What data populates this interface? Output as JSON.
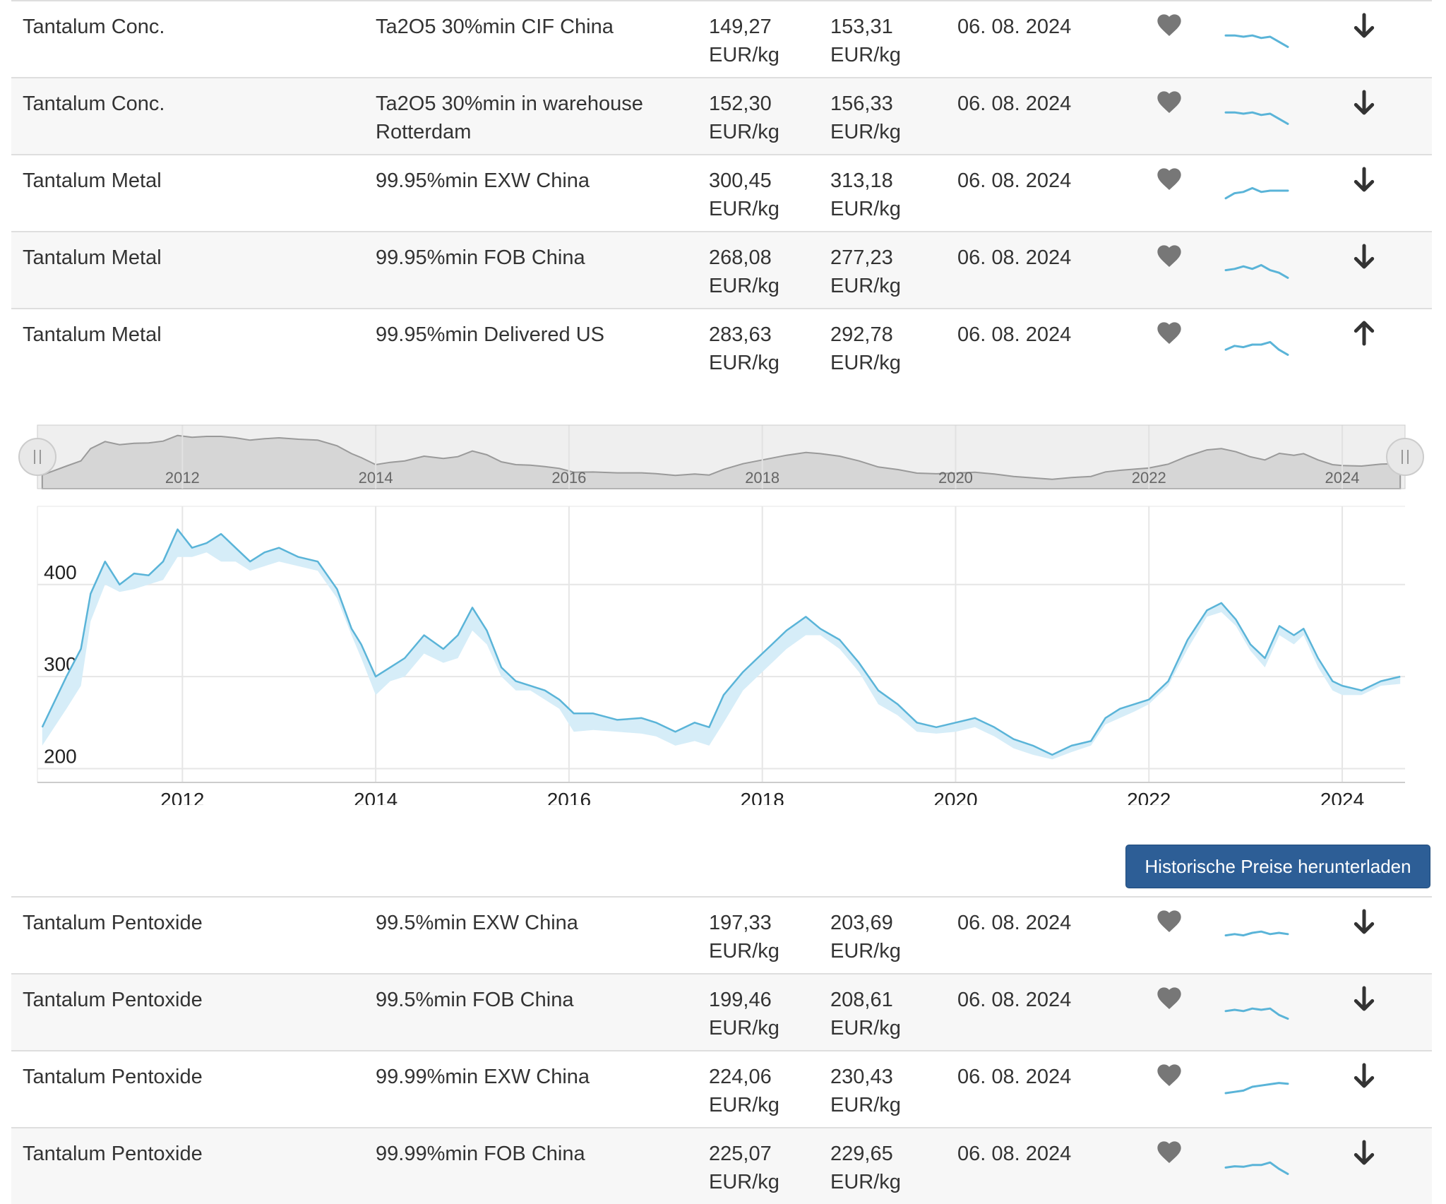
{
  "table_top": {
    "rows": [
      {
        "name": "Tantalum Conc.",
        "spec": "Ta2O5 30%min CIF China",
        "price_low": "149,27",
        "price_high": "153,31",
        "unit": "EUR/kg",
        "date": "06. 08. 2024",
        "trend": "down",
        "spark": [
          0.55,
          0.55,
          0.5,
          0.55,
          0.45,
          0.5,
          0.3,
          0.1
        ]
      },
      {
        "name": "Tantalum Conc.",
        "spec": "Ta2O5 30%min in warehouse Rotterdam",
        "price_low": "152,30",
        "price_high": "156,33",
        "unit": "EUR/kg",
        "date": "06. 08. 2024",
        "trend": "down",
        "spark": [
          0.55,
          0.55,
          0.5,
          0.55,
          0.45,
          0.5,
          0.3,
          0.1
        ]
      },
      {
        "name": "Tantalum Metal",
        "spec": "99.95%min EXW China",
        "price_low": "300,45",
        "price_high": "313,18",
        "unit": "EUR/kg",
        "date": "06. 08. 2024",
        "trend": "down",
        "spark": [
          0.2,
          0.4,
          0.45,
          0.6,
          0.45,
          0.5,
          0.5,
          0.5
        ]
      },
      {
        "name": "Tantalum Metal",
        "spec": "99.95%min FOB China",
        "price_low": "268,08",
        "price_high": "277,23",
        "unit": "EUR/kg",
        "date": "06. 08. 2024",
        "trend": "down",
        "spark": [
          0.4,
          0.45,
          0.55,
          0.45,
          0.6,
          0.4,
          0.3,
          0.1
        ]
      },
      {
        "name": "Tantalum Metal",
        "spec": "99.95%min Delivered US",
        "price_low": "283,63",
        "price_high": "292,78",
        "unit": "EUR/kg",
        "date": "06. 08. 2024",
        "trend": "up",
        "spark": [
          0.3,
          0.45,
          0.4,
          0.5,
          0.5,
          0.6,
          0.3,
          0.1
        ]
      }
    ]
  },
  "chart_data": {
    "type": "area",
    "title": "",
    "xlabel": "",
    "ylabel": "",
    "xlim": [
      2010.5,
      2024.65
    ],
    "ylim": [
      185,
      485
    ],
    "y_ticks": [
      200,
      300,
      400
    ],
    "x_ticks": [
      2012,
      2014,
      2016,
      2018,
      2020,
      2022,
      2024
    ],
    "grid": true,
    "legend": "none",
    "line_color": "#5ab4d8",
    "band_color": "#d6edf8",
    "x": [
      2010.55,
      2010.8,
      2010.95,
      2011.05,
      2011.2,
      2011.35,
      2011.5,
      2011.65,
      2011.8,
      2011.95,
      2012.1,
      2012.25,
      2012.4,
      2012.55,
      2012.7,
      2012.85,
      2013.0,
      2013.2,
      2013.4,
      2013.6,
      2013.75,
      2013.85,
      2014.0,
      2014.15,
      2014.3,
      2014.5,
      2014.7,
      2014.85,
      2015.0,
      2015.15,
      2015.3,
      2015.45,
      2015.6,
      2015.75,
      2015.9,
      2016.05,
      2016.25,
      2016.5,
      2016.75,
      2016.9,
      2017.1,
      2017.3,
      2017.45,
      2017.6,
      2017.8,
      2017.95,
      2018.1,
      2018.25,
      2018.45,
      2018.6,
      2018.8,
      2019.0,
      2019.2,
      2019.4,
      2019.6,
      2019.8,
      2020.0,
      2020.2,
      2020.4,
      2020.6,
      2020.8,
      2021.0,
      2021.2,
      2021.4,
      2021.55,
      2021.7,
      2021.85,
      2022.0,
      2022.2,
      2022.4,
      2022.6,
      2022.75,
      2022.9,
      2023.05,
      2023.2,
      2023.35,
      2023.5,
      2023.6,
      2023.75,
      2023.9,
      2024.0,
      2024.2,
      2024.4,
      2024.6
    ],
    "high": [
      245,
      300,
      330,
      390,
      425,
      400,
      412,
      410,
      425,
      460,
      440,
      445,
      455,
      440,
      425,
      435,
      440,
      430,
      425,
      395,
      352,
      335,
      300,
      310,
      320,
      345,
      330,
      345,
      375,
      350,
      310,
      295,
      290,
      285,
      275,
      260,
      260,
      253,
      255,
      250,
      240,
      250,
      245,
      280,
      305,
      320,
      335,
      350,
      365,
      352,
      340,
      315,
      285,
      270,
      250,
      245,
      250,
      255,
      245,
      232,
      225,
      215,
      225,
      230,
      255,
      265,
      270,
      275,
      295,
      340,
      372,
      380,
      362,
      335,
      320,
      355,
      345,
      352,
      320,
      295,
      290,
      285,
      295,
      300
    ],
    "low": [
      225,
      265,
      290,
      360,
      400,
      392,
      395,
      400,
      405,
      430,
      430,
      435,
      425,
      425,
      415,
      420,
      425,
      420,
      415,
      385,
      345,
      320,
      280,
      295,
      300,
      325,
      315,
      320,
      350,
      335,
      300,
      285,
      285,
      275,
      265,
      240,
      242,
      240,
      238,
      235,
      225,
      230,
      225,
      250,
      285,
      300,
      315,
      330,
      345,
      345,
      330,
      305,
      270,
      258,
      240,
      238,
      240,
      245,
      235,
      222,
      215,
      210,
      218,
      225,
      248,
      255,
      262,
      270,
      290,
      330,
      365,
      370,
      355,
      328,
      310,
      345,
      335,
      345,
      310,
      285,
      280,
      280,
      290,
      292
    ],
    "navigator": {
      "labels": [
        "2012",
        "2014",
        "2016",
        "2018",
        "2020",
        "2022",
        "2024"
      ]
    }
  },
  "download_button": {
    "label": "Historische Preise herunterladen"
  },
  "table_bottom": {
    "rows": [
      {
        "name": "Tantalum Pentoxide",
        "spec": "99.5%min EXW China",
        "price_low": "197,33",
        "price_high": "203,69",
        "unit": "EUR/kg",
        "date": "06. 08. 2024",
        "trend": "down",
        "spark": [
          0.4,
          0.45,
          0.4,
          0.5,
          0.55,
          0.45,
          0.5,
          0.45
        ]
      },
      {
        "name": "Tantalum Pentoxide",
        "spec": "99.5%min FOB China",
        "price_low": "199,46",
        "price_high": "208,61",
        "unit": "EUR/kg",
        "date": "06. 08. 2024",
        "trend": "down",
        "spark": [
          0.45,
          0.5,
          0.45,
          0.55,
          0.5,
          0.55,
          0.3,
          0.15
        ]
      },
      {
        "name": "Tantalum Pentoxide",
        "spec": "99.99%min EXW China",
        "price_low": "224,06",
        "price_high": "230,43",
        "unit": "EUR/kg",
        "date": "06. 08. 2024",
        "trend": "down",
        "spark": [
          0.25,
          0.3,
          0.35,
          0.5,
          0.55,
          0.6,
          0.65,
          0.62
        ]
      },
      {
        "name": "Tantalum Pentoxide",
        "spec": "99.99%min FOB China",
        "price_low": "225,07",
        "price_high": "229,65",
        "unit": "EUR/kg",
        "date": "06. 08. 2024",
        "trend": "down",
        "spark": [
          0.35,
          0.4,
          0.38,
          0.45,
          0.45,
          0.55,
          0.3,
          0.1
        ]
      }
    ]
  },
  "icons": {
    "favorite": "heart-icon",
    "trend_down": "arrow-down-icon",
    "trend_up": "arrow-up-icon",
    "favorite_color": "#777777",
    "arrow_color": "#333333",
    "spark_color": "#5ab4d8"
  }
}
